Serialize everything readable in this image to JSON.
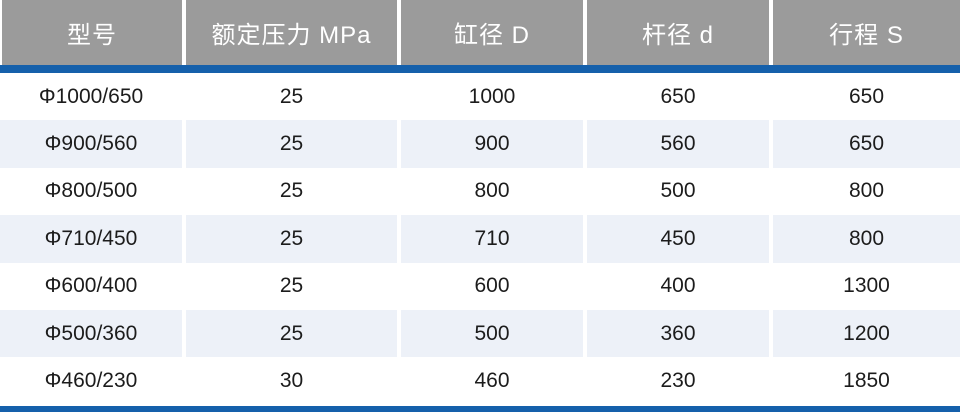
{
  "chart_data": {
    "type": "table",
    "columns": [
      "型号",
      "额定压力 MPa",
      "缸径 D",
      "杆径 d",
      "行程 S"
    ],
    "rows": [
      [
        "Φ1000/650",
        "25",
        "1000",
        "650",
        "650"
      ],
      [
        "Φ900/560",
        "25",
        "900",
        "560",
        "650"
      ],
      [
        "Φ800/500",
        "25",
        "800",
        "500",
        "800"
      ],
      [
        "Φ710/450",
        "25",
        "710",
        "450",
        "800"
      ],
      [
        "Φ600/400",
        "25",
        "600",
        "400",
        "1300"
      ],
      [
        "Φ500/360",
        "25",
        "500",
        "360",
        "1200"
      ],
      [
        "Φ460/230",
        "30",
        "460",
        "230",
        "1850"
      ]
    ]
  },
  "style": {
    "header_bg": "#9b9b9b",
    "header_text": "#ffffff",
    "accent_blue": "#1560ab",
    "row_bg": "#ffffff",
    "row_alt_bg": "#edf1f8",
    "body_text": "#1c1c1c"
  }
}
